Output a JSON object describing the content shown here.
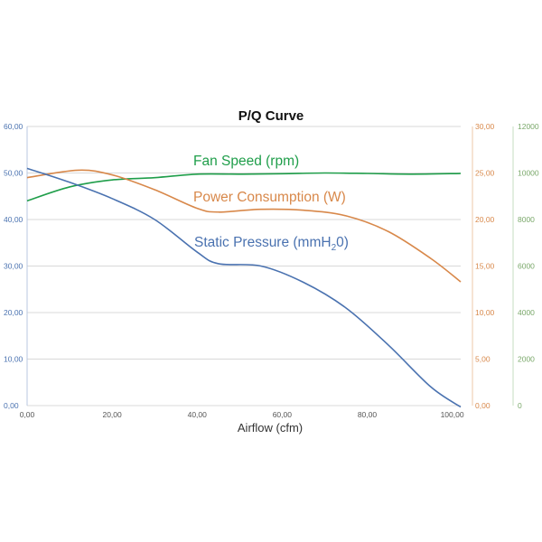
{
  "chart_data": {
    "type": "line",
    "title": "P/Q Curve",
    "xlabel": "Airflow (cfm)",
    "xlim": [
      0,
      102
    ],
    "x_ticks": [
      "0,00",
      "20,00",
      "40,00",
      "60,00",
      "80,00",
      "100,00"
    ],
    "x_tick_values": [
      0,
      20,
      40,
      60,
      80,
      100
    ],
    "axes": {
      "left": {
        "range": [
          0,
          60
        ],
        "ticks": [
          "0,00",
          "10,00",
          "20,00",
          "30,00",
          "40,00",
          "50,00",
          "60,00"
        ],
        "tick_values": [
          0,
          10,
          20,
          30,
          40,
          50,
          60
        ],
        "color": "#4a72b0"
      },
      "right1": {
        "range": [
          0,
          30
        ],
        "ticks": [
          "0,00",
          "5,00",
          "10,00",
          "15,00",
          "20,00",
          "25,00",
          "30,00"
        ],
        "tick_values": [
          0,
          5,
          10,
          15,
          20,
          25,
          30
        ],
        "color": "#d8884a"
      },
      "right2": {
        "range": [
          0,
          12000
        ],
        "ticks": [
          "0",
          "2000",
          "4000",
          "6000",
          "8000",
          "10000",
          "12000"
        ],
        "tick_values": [
          0,
          2000,
          4000,
          6000,
          8000,
          10000,
          12000
        ],
        "color": "#7aa86a"
      }
    },
    "grid": "horizontal",
    "series": [
      {
        "name": "Fan Speed (rpm)",
        "axis": "right2",
        "color": "#1f9e4a",
        "points": [
          [
            0,
            8800
          ],
          [
            10,
            9400
          ],
          [
            20,
            9700
          ],
          [
            30,
            9800
          ],
          [
            40,
            9950
          ],
          [
            50,
            9950
          ],
          [
            60,
            9970
          ],
          [
            70,
            10000
          ],
          [
            80,
            9980
          ],
          [
            90,
            9950
          ],
          [
            102,
            9980
          ]
        ]
      },
      {
        "name": "Power Consumption (W)",
        "axis": "right1",
        "color": "#d8884a",
        "points": [
          [
            0,
            24.5
          ],
          [
            12,
            25.3
          ],
          [
            20,
            24.8
          ],
          [
            30,
            23.2
          ],
          [
            40,
            21.2
          ],
          [
            45,
            20.8
          ],
          [
            55,
            21.1
          ],
          [
            65,
            21.0
          ],
          [
            75,
            20.4
          ],
          [
            85,
            18.7
          ],
          [
            95,
            15.8
          ],
          [
            102,
            13.3
          ]
        ]
      },
      {
        "name": "Static Pressure (mmH₂0)",
        "axis": "left",
        "color": "#4a72b0",
        "points": [
          [
            0,
            51
          ],
          [
            10,
            48
          ],
          [
            20,
            44.5
          ],
          [
            30,
            40
          ],
          [
            40,
            33
          ],
          [
            45,
            30.5
          ],
          [
            55,
            30
          ],
          [
            65,
            26.5
          ],
          [
            75,
            21
          ],
          [
            85,
            13
          ],
          [
            95,
            4
          ],
          [
            102,
            -0.3
          ]
        ]
      }
    ],
    "annotations": [
      {
        "text": "Fan Speed (rpm)",
        "color": "#1f9e4a"
      },
      {
        "text": "Power Consumption (W)",
        "color": "#d8884a"
      },
      {
        "text": "Static Pressure (mmH",
        "subscript": "2",
        "suffix": "0)",
        "color": "#4a72b0"
      }
    ]
  }
}
